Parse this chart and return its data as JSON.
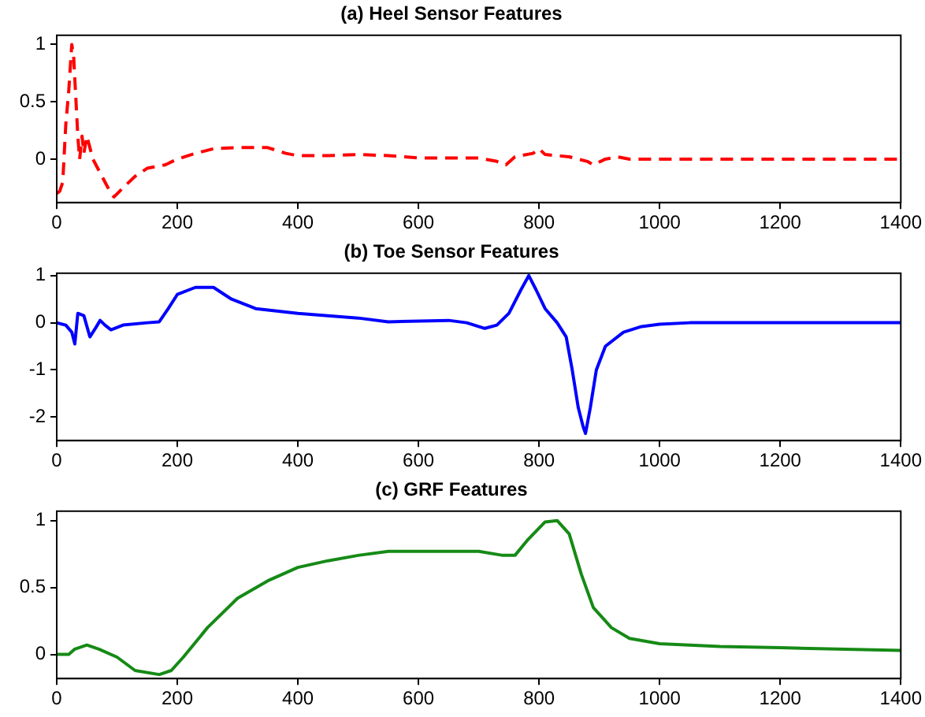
{
  "chart_data": [
    {
      "type": "line",
      "title": "(a) Heel Sensor Features",
      "line_style": "dashed",
      "marker": "none",
      "grid": false,
      "legend": false,
      "xlim": [
        0,
        1400
      ],
      "xticks": [
        0,
        200,
        400,
        600,
        800,
        1000,
        1200,
        1400
      ],
      "ylim": [
        -0.38,
        1.08
      ],
      "yticks": [
        0,
        0.5,
        1
      ],
      "series": [
        {
          "color": "#ff0000",
          "x": [
            0,
            5,
            10,
            15,
            20,
            25,
            28,
            32,
            35,
            38,
            42,
            45,
            50,
            55,
            60,
            70,
            80,
            90,
            95,
            110,
            130,
            150,
            180,
            200,
            230,
            260,
            300,
            350,
            380,
            400,
            450,
            500,
            550,
            600,
            700,
            730,
            745,
            760,
            790,
            800,
            810,
            850,
            880,
            890,
            910,
            930,
            950,
            1000,
            1400
          ],
          "values": [
            -0.3,
            -0.28,
            -0.2,
            0.3,
            0.6,
            1.0,
            0.9,
            0.5,
            0.2,
            0.0,
            0.2,
            0.05,
            0.2,
            0.1,
            0.0,
            -0.1,
            -0.2,
            -0.3,
            -0.33,
            -0.25,
            -0.15,
            -0.08,
            -0.05,
            0.0,
            0.05,
            0.09,
            0.1,
            0.1,
            0.05,
            0.03,
            0.03,
            0.04,
            0.03,
            0.01,
            0.01,
            -0.02,
            -0.05,
            0.02,
            0.05,
            0.09,
            0.04,
            0.02,
            -0.02,
            -0.05,
            0.0,
            0.02,
            0.0,
            0.0,
            0.0
          ]
        }
      ]
    },
    {
      "type": "line",
      "title": "(b) Toe Sensor Features",
      "line_style": "solid",
      "marker": "none",
      "grid": false,
      "legend": false,
      "xlim": [
        0,
        1400
      ],
      "xticks": [
        0,
        200,
        400,
        600,
        800,
        1000,
        1200,
        1400
      ],
      "ylim": [
        -2.5,
        1.05
      ],
      "yticks": [
        -2,
        -1,
        0,
        1
      ],
      "series": [
        {
          "color": "#0000ff",
          "x": [
            0,
            15,
            25,
            30,
            35,
            45,
            55,
            65,
            72,
            80,
            90,
            110,
            150,
            170,
            185,
            200,
            230,
            260,
            290,
            330,
            400,
            500,
            550,
            650,
            680,
            710,
            730,
            750,
            770,
            783,
            795,
            810,
            830,
            845,
            855,
            865,
            873,
            877,
            885,
            895,
            910,
            940,
            970,
            1000,
            1050,
            1400
          ],
          "values": [
            0.0,
            -0.05,
            -0.2,
            -0.45,
            0.2,
            0.15,
            -0.3,
            -0.1,
            0.05,
            -0.05,
            -0.15,
            -0.05,
            0.0,
            0.02,
            0.3,
            0.6,
            0.75,
            0.75,
            0.5,
            0.3,
            0.2,
            0.1,
            0.02,
            0.05,
            0.0,
            -0.12,
            -0.05,
            0.2,
            0.7,
            1.0,
            0.7,
            0.3,
            0.0,
            -0.3,
            -1.0,
            -1.8,
            -2.2,
            -2.35,
            -1.8,
            -1.0,
            -0.5,
            -0.2,
            -0.08,
            -0.03,
            0.0,
            0.0
          ]
        }
      ]
    },
    {
      "type": "line",
      "title": "(c) GRF Features",
      "line_style": "solid",
      "marker": "none",
      "grid": false,
      "legend": false,
      "xlim": [
        0,
        1400
      ],
      "xticks": [
        0,
        200,
        400,
        600,
        800,
        1000,
        1200,
        1400
      ],
      "ylim": [
        -0.18,
        1.07
      ],
      "yticks": [
        0,
        0.5,
        1
      ],
      "series": [
        {
          "color": "#168a16",
          "x": [
            0,
            20,
            30,
            50,
            70,
            100,
            130,
            170,
            190,
            210,
            250,
            300,
            350,
            400,
            450,
            500,
            550,
            600,
            700,
            740,
            760,
            780,
            810,
            830,
            850,
            870,
            890,
            920,
            950,
            1000,
            1100,
            1200,
            1400
          ],
          "values": [
            0.0,
            0.0,
            0.04,
            0.07,
            0.04,
            -0.02,
            -0.12,
            -0.15,
            -0.12,
            -0.02,
            0.2,
            0.42,
            0.55,
            0.65,
            0.7,
            0.74,
            0.77,
            0.77,
            0.77,
            0.74,
            0.74,
            0.85,
            0.99,
            1.0,
            0.9,
            0.6,
            0.35,
            0.2,
            0.12,
            0.08,
            0.06,
            0.05,
            0.03
          ]
        }
      ]
    }
  ]
}
